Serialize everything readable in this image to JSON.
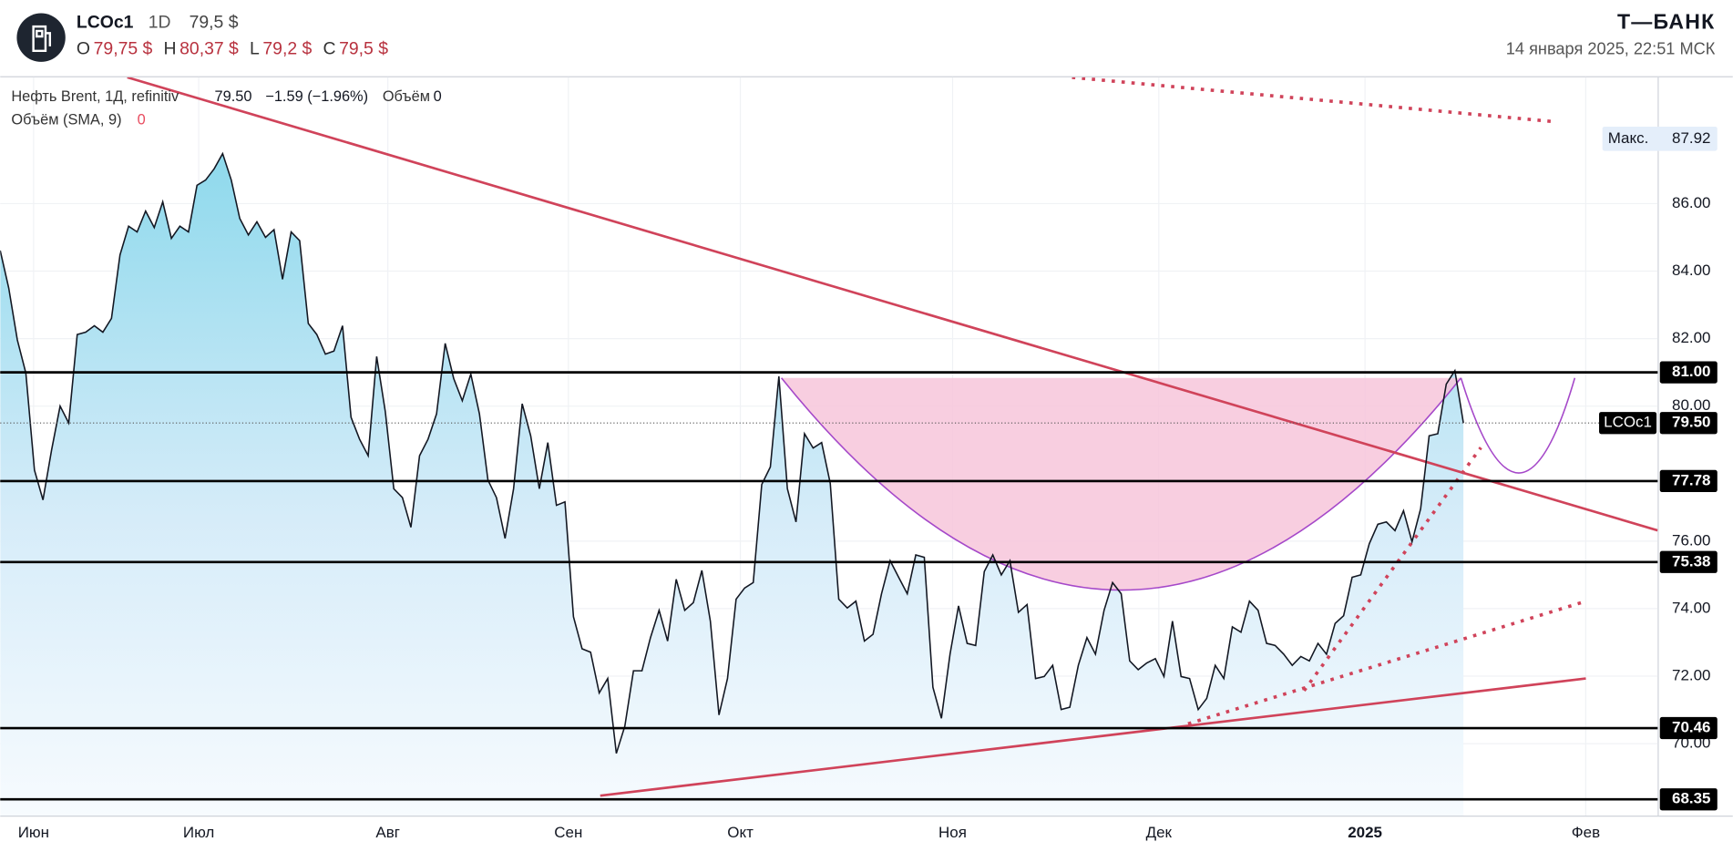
{
  "header": {
    "symbol": "LCOc1",
    "interval": "1D",
    "price": "79,5 $",
    "ohlc": [
      {
        "label": "O",
        "value": "79,75 $"
      },
      {
        "label": "H",
        "value": "80,37 $"
      },
      {
        "label": "L",
        "value": "79,2 $"
      },
      {
        "label": "C",
        "value": "79,5 $"
      }
    ],
    "brand": "Т—БАНК",
    "datetime": "14 января 2025, 22:51 МСК"
  },
  "chart_data": {
    "type": "area",
    "legend": {
      "name": "Нефть Brent, 1Д, refinitiv",
      "last": "79.50",
      "change": "−1.59 (−1.96%)",
      "volume_label": "Объём",
      "volume": "0",
      "sma_label": "Объём (SMA, 9)",
      "sma": "0"
    },
    "x": [
      0,
      1,
      2,
      3,
      4,
      5,
      6,
      7,
      8,
      9,
      10,
      11,
      12,
      13,
      14,
      15,
      16,
      17,
      18,
      19,
      20,
      21,
      22,
      23,
      24,
      25,
      26,
      27,
      28,
      29,
      30,
      31,
      32,
      33,
      34,
      35,
      36,
      37,
      38,
      39,
      40,
      41,
      42,
      43,
      44,
      45,
      46,
      47,
      48,
      49,
      50,
      51,
      52,
      53,
      54,
      55,
      56,
      57,
      58,
      59,
      60,
      61,
      62,
      63,
      64,
      65,
      66,
      67,
      68,
      69,
      70,
      71,
      72,
      73,
      74,
      75,
      76,
      77,
      78,
      79,
      80,
      81,
      82,
      83,
      84,
      85,
      86,
      87,
      88,
      89,
      90,
      91,
      92,
      93,
      94,
      95,
      96,
      97,
      98,
      99,
      100,
      101,
      102,
      103,
      104,
      105,
      106,
      107,
      108,
      109,
      110,
      111,
      112,
      113,
      114,
      115,
      116,
      117,
      118,
      119,
      120,
      121,
      122,
      123,
      124,
      125,
      126,
      127,
      128,
      129,
      130,
      131,
      132,
      133,
      134,
      135,
      136,
      137,
      138,
      139,
      140,
      141,
      142,
      143,
      144,
      145,
      146,
      147,
      148,
      149,
      150,
      151,
      152,
      153,
      154,
      155,
      156,
      157,
      158,
      159,
      160,
      161,
      162,
      163,
      164,
      165,
      166,
      167,
      168,
      169,
      170,
      171
    ],
    "series": [
      {
        "name": "LCOc1",
        "color": "#131722",
        "values": [
          84.61,
          83.5,
          81.96,
          80.98,
          78.1,
          77.22,
          78.7,
          80.0,
          79.5,
          82.12,
          82.19,
          82.38,
          82.19,
          82.6,
          84.48,
          85.33,
          85.16,
          85.78,
          85.29,
          86.05,
          84.97,
          85.33,
          85.16,
          86.54,
          86.7,
          87.03,
          87.48,
          86.7,
          85.56,
          85.07,
          85.46,
          85.0,
          85.23,
          83.76,
          85.16,
          84.9,
          82.45,
          82.12,
          81.54,
          81.63,
          82.38,
          79.67,
          79.02,
          78.53,
          81.47,
          79.84,
          77.55,
          77.29,
          76.41,
          78.53,
          79.02,
          79.77,
          81.86,
          80.82,
          80.16,
          80.95,
          79.77,
          77.81,
          77.29,
          76.08,
          77.55,
          80.07,
          79.12,
          77.55,
          78.92,
          77.06,
          77.16,
          73.76,
          72.81,
          72.71,
          71.5,
          71.93,
          69.71,
          70.52,
          72.16,
          72.16,
          73.14,
          73.95,
          73.04,
          74.87,
          73.95,
          74.18,
          75.13,
          73.63,
          70.85,
          71.93,
          74.28,
          74.61,
          74.77,
          77.68,
          78.2,
          80.88,
          77.55,
          76.57,
          79.18,
          78.76,
          78.92,
          77.71,
          74.28,
          74.02,
          74.22,
          73.04,
          73.24,
          74.44,
          75.42,
          74.93,
          74.44,
          75.59,
          75.52,
          71.67,
          70.75,
          72.65,
          74.08,
          72.97,
          72.91,
          75.1,
          75.59,
          75.0,
          75.42,
          73.89,
          74.12,
          71.93,
          71.99,
          72.32,
          71.01,
          71.08,
          72.32,
          73.14,
          72.65,
          73.95,
          74.77,
          74.44,
          72.45,
          72.19,
          72.39,
          72.52,
          71.99,
          73.63,
          71.99,
          71.93,
          71.01,
          71.34,
          72.32,
          71.93,
          73.46,
          73.3,
          74.22,
          73.95,
          72.97,
          72.91,
          72.65,
          72.32,
          72.58,
          72.45,
          72.97,
          72.65,
          73.56,
          73.79,
          74.93,
          75.0,
          75.92,
          76.5,
          76.57,
          76.31,
          76.9,
          75.98,
          76.96,
          79.12,
          79.18,
          80.65,
          81.05,
          79.5
        ]
      }
    ],
    "xlim": [
      0,
      193.7
    ],
    "xticks": [
      {
        "value": 3.9,
        "label": "Июн"
      },
      {
        "value": 23.2,
        "label": "Июл"
      },
      {
        "value": 45.3,
        "label": "Авг"
      },
      {
        "value": 66.4,
        "label": "Сен"
      },
      {
        "value": 86.5,
        "label": "Окт"
      },
      {
        "value": 111.3,
        "label": "Ноя"
      },
      {
        "value": 135.4,
        "label": "Дек"
      },
      {
        "value": 159.5,
        "label": "2025"
      },
      {
        "value": 185.3,
        "label": "Фев"
      }
    ],
    "ylim": [
      67.87,
      89.74
    ],
    "yticks": [
      {
        "value": 70,
        "label": "70.00"
      },
      {
        "value": 72,
        "label": "72.00"
      },
      {
        "value": 74,
        "label": "74.00"
      },
      {
        "value": 76,
        "label": "76.00"
      },
      {
        "value": 80,
        "label": "80.00"
      },
      {
        "value": 82,
        "label": "82.00"
      },
      {
        "value": 84,
        "label": "84.00"
      },
      {
        "value": 86,
        "label": "86.00"
      }
    ],
    "levels": [
      {
        "value": 81,
        "label": "81.00"
      },
      {
        "value": 77.78,
        "label": "77.78"
      },
      {
        "value": 75.38,
        "label": "75.38"
      },
      {
        "value": 70.46,
        "label": "70.46"
      },
      {
        "value": 68.35,
        "label": "68.35"
      }
    ],
    "current": {
      "name": "LCOc1",
      "value": 79.5,
      "label": "79.50"
    },
    "max": {
      "name": "Макс.",
      "value": 87.92,
      "label": "87.92"
    },
    "grid": true
  }
}
